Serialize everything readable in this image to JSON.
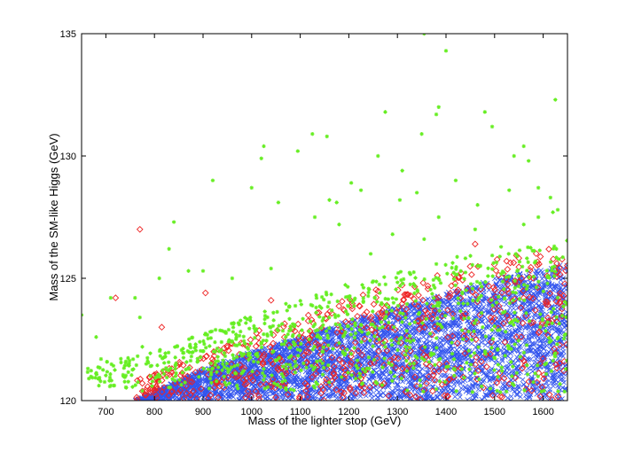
{
  "chart_data": {
    "type": "scatter",
    "title": "",
    "xlabel": "Mass of the lighter stop (GeV)",
    "ylabel": "Mass of the SM-like Higgs (GeV)",
    "xlim": [
      650,
      1650
    ],
    "ylim": [
      120,
      135
    ],
    "xticks": [
      "700",
      "800",
      "900",
      "1000",
      "1100",
      "1200",
      "1300",
      "1400",
      "1500",
      "1600"
    ],
    "yticks": [
      "120",
      "125",
      "130",
      "135"
    ],
    "grid": false,
    "legend": "none",
    "series": [
      {
        "marker": "x",
        "color": "#3355ee",
        "band": {
          "lower": [
            [
              760,
              120
            ],
            [
              1650,
              120
            ]
          ],
          "upper": [
            [
              760,
              120.0
            ],
            [
              900,
              121.3
            ],
            [
              1000,
              122.0
            ],
            [
              1100,
              122.6
            ],
            [
              1200,
              123.3
            ],
            [
              1300,
              123.8
            ],
            [
              1400,
              124.4
            ],
            [
              1500,
              125.0
            ],
            [
              1600,
              125.4
            ],
            [
              1650,
              125.6
            ]
          ],
          "count": 4200
        }
      },
      {
        "marker": "diamond",
        "color": "#ee2222",
        "band": {
          "lower": [
            [
              760,
              120
            ],
            [
              1650,
              120
            ]
          ],
          "upper": [
            [
              760,
              120.8
            ],
            [
              900,
              122.0
            ],
            [
              1000,
              122.8
            ],
            [
              1100,
              123.5
            ],
            [
              1200,
              124.2
            ],
            [
              1300,
              124.8
            ],
            [
              1400,
              125.3
            ],
            [
              1500,
              125.8
            ],
            [
              1600,
              126.2
            ],
            [
              1650,
              126.3
            ]
          ],
          "count": 620
        },
        "points": [
          [
            770,
            127.0
          ],
          [
            720,
            124.2
          ],
          [
            905,
            124.4
          ],
          [
            1040,
            124.1
          ],
          [
            815,
            123.0
          ],
          [
            1460,
            126.4
          ]
        ]
      },
      {
        "marker": "asterisk",
        "color": "#66ee22",
        "band": {
          "lower": [
            [
              660,
              120.5
            ],
            [
              1650,
              120.3
            ]
          ],
          "upper": [
            [
              660,
              121.5
            ],
            [
              800,
              122.0
            ],
            [
              900,
              122.8
            ],
            [
              1000,
              123.5
            ],
            [
              1100,
              124.2
            ],
            [
              1200,
              124.8
            ],
            [
              1300,
              125.3
            ],
            [
              1400,
              125.9
            ],
            [
              1500,
              126.3
            ],
            [
              1600,
              126.5
            ],
            [
              1650,
              126.6
            ]
          ],
          "count": 900
        },
        "points": [
          [
            1355,
            135.0
          ],
          [
            1400,
            134.3
          ],
          [
            1625,
            132.3
          ],
          [
            1385,
            132.0
          ],
          [
            1380,
            131.7
          ],
          [
            1275,
            131.8
          ],
          [
            1480,
            131.8
          ],
          [
            1125,
            130.9
          ],
          [
            1155,
            130.8
          ],
          [
            1025,
            130.4
          ],
          [
            1020,
            129.9
          ],
          [
            1095,
            130.2
          ],
          [
            1350,
            130.9
          ],
          [
            1560,
            130.4
          ],
          [
            1570,
            129.8
          ],
          [
            1495,
            131.2
          ],
          [
            1540,
            130.0
          ],
          [
            1260,
            130.0
          ],
          [
            1205,
            128.9
          ],
          [
            1225,
            128.6
          ],
          [
            1175,
            128.1
          ],
          [
            1160,
            128.2
          ],
          [
            1130,
            127.5
          ],
          [
            1000,
            128.7
          ],
          [
            920,
            129.0
          ],
          [
            1055,
            128.1
          ],
          [
            1180,
            127.2
          ],
          [
            1305,
            128.2
          ],
          [
            1340,
            128.5
          ],
          [
            1310,
            129.4
          ],
          [
            1420,
            129.0
          ],
          [
            1465,
            128.0
          ],
          [
            1530,
            128.6
          ],
          [
            1615,
            128.3
          ],
          [
            1590,
            128.7
          ],
          [
            1620,
            127.7
          ],
          [
            1560,
            127.2
          ],
          [
            1460,
            127.0
          ],
          [
            1385,
            127.5
          ],
          [
            840,
            127.3
          ],
          [
            830,
            126.2
          ],
          [
            1290,
            126.8
          ],
          [
            1355,
            126.6
          ],
          [
            1245,
            126.0
          ],
          [
            900,
            125.3
          ],
          [
            870,
            125.3
          ],
          [
            960,
            125.0
          ],
          [
            1040,
            125.4
          ],
          [
            1630,
            127.8
          ],
          [
            1590,
            127.5
          ],
          [
            710,
            124.2
          ],
          [
            680,
            122.6
          ],
          [
            690,
            121.7
          ],
          [
            770,
            123.4
          ],
          [
            760,
            124.2
          ],
          [
            665,
            120.9
          ],
          [
            775,
            122.2
          ],
          [
            775,
            120.4
          ],
          [
            650,
            123.5
          ],
          [
            925,
            122.0
          ],
          [
            885,
            122.2
          ],
          [
            810,
            125.0
          ]
        ]
      }
    ]
  }
}
